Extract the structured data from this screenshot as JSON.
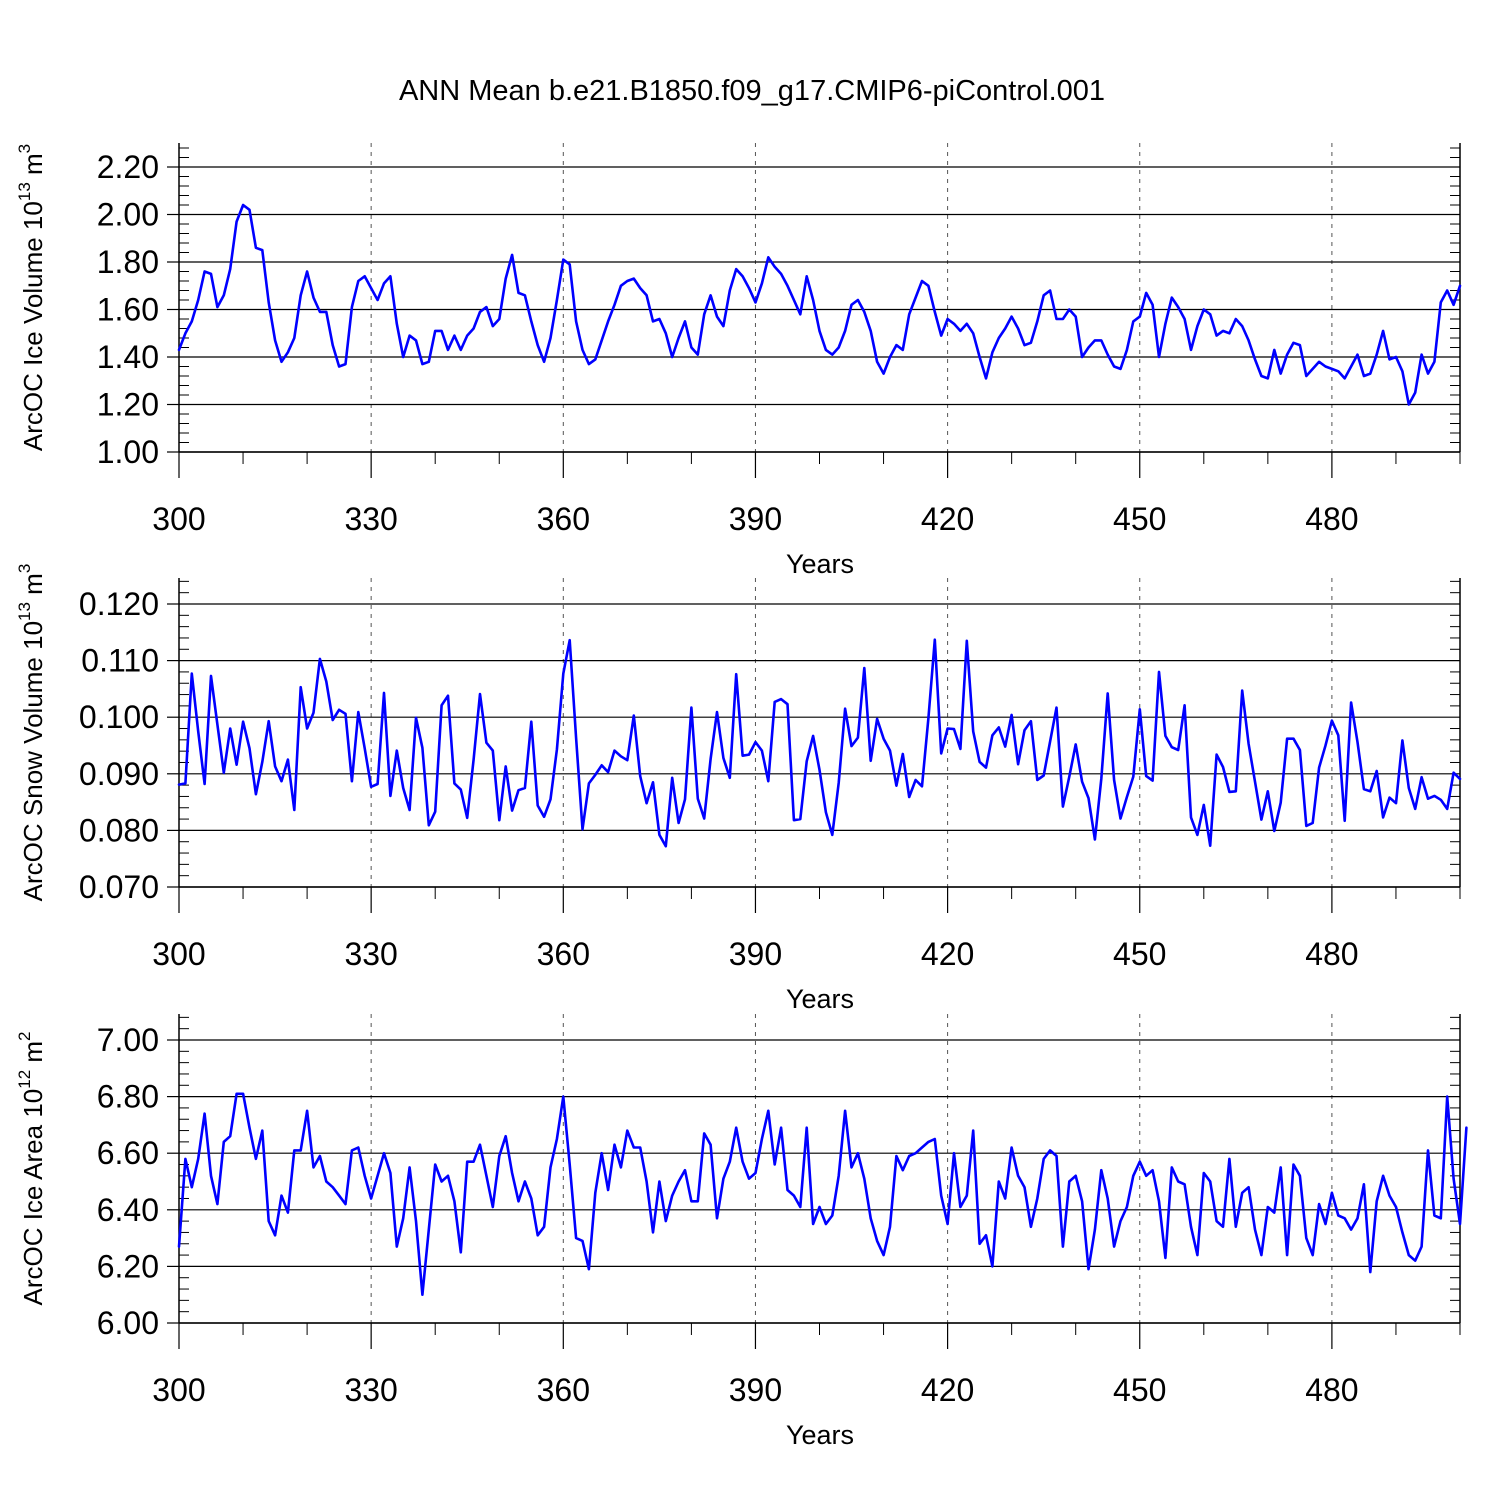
{
  "title": "ANN Mean b.e21.B1850.f09_g17.CMIP6-piControl.001",
  "colors": {
    "series": "#0000ff",
    "axes": "#000000",
    "grid": "#555555"
  },
  "chart_data": [
    {
      "type": "line",
      "title": "ANN Mean b.e21.B1850.f09_g17.CMIP6-piControl.001",
      "xlabel": "Years",
      "ylabel": {
        "text": "ArcOC Ice Volume 10",
        "exponent": "13",
        "unit": " m",
        "unit_exponent": "3"
      },
      "xlim": [
        300,
        500
      ],
      "ylim": [
        1.0,
        2.2
      ],
      "xticks": [
        300,
        330,
        360,
        390,
        420,
        450,
        480
      ],
      "xtick_labels": [
        "300",
        "330",
        "360",
        "390",
        "420",
        "450",
        "480"
      ],
      "yticks": [
        1.0,
        1.2,
        1.4,
        1.6,
        1.8,
        2.0,
        2.2
      ],
      "ytick_labels": [
        "1.00",
        "1.20",
        "1.40",
        "1.60",
        "1.80",
        "2.00",
        "2.20"
      ],
      "grid": "vertical dashed at major x ticks",
      "series": [
        {
          "name": "ArcOC Ice Volume",
          "x_start": 300,
          "x_step": 1,
          "values": [
            1.43,
            1.5,
            1.55,
            1.64,
            1.76,
            1.75,
            1.61,
            1.66,
            1.77,
            1.97,
            2.04,
            2.02,
            1.86,
            1.85,
            1.63,
            1.47,
            1.38,
            1.42,
            1.48,
            1.66,
            1.76,
            1.65,
            1.59,
            1.59,
            1.45,
            1.36,
            1.37,
            1.61,
            1.72,
            1.74,
            1.69,
            1.64,
            1.71,
            1.74,
            1.54,
            1.4,
            1.49,
            1.47,
            1.37,
            1.38,
            1.51,
            1.51,
            1.43,
            1.49,
            1.43,
            1.49,
            1.52,
            1.59,
            1.61,
            1.53,
            1.56,
            1.73,
            1.83,
            1.67,
            1.66,
            1.55,
            1.45,
            1.38,
            1.48,
            1.64,
            1.81,
            1.79,
            1.55,
            1.43,
            1.37,
            1.39,
            1.47,
            1.55,
            1.62,
            1.7,
            1.72,
            1.73,
            1.69,
            1.66,
            1.55,
            1.56,
            1.5,
            1.4,
            1.48,
            1.55,
            1.44,
            1.41,
            1.58,
            1.66,
            1.57,
            1.53,
            1.68,
            1.77,
            1.74,
            1.69,
            1.63,
            1.71,
            1.82,
            1.78,
            1.75,
            1.7,
            1.64,
            1.58,
            1.74,
            1.64,
            1.51,
            1.43,
            1.41,
            1.44,
            1.51,
            1.62,
            1.64,
            1.59,
            1.51,
            1.38,
            1.33,
            1.4,
            1.45,
            1.43,
            1.58,
            1.65,
            1.72,
            1.7,
            1.59,
            1.49,
            1.56,
            1.54,
            1.51,
            1.54,
            1.5,
            1.4,
            1.31,
            1.42,
            1.48,
            1.52,
            1.57,
            1.52,
            1.45,
            1.46,
            1.55,
            1.66,
            1.68,
            1.56,
            1.56,
            1.6,
            1.57,
            1.4,
            1.44,
            1.47,
            1.47,
            1.41,
            1.36,
            1.35,
            1.43,
            1.55,
            1.57,
            1.67,
            1.62,
            1.4,
            1.54,
            1.65,
            1.61,
            1.56,
            1.43,
            1.53,
            1.6,
            1.58,
            1.49,
            1.51,
            1.5,
            1.56,
            1.53,
            1.47,
            1.39,
            1.32,
            1.31,
            1.43,
            1.33,
            1.41,
            1.46,
            1.45,
            1.32,
            1.35,
            1.38,
            1.36,
            1.35,
            1.34,
            1.31,
            1.36,
            1.41,
            1.32,
            1.33,
            1.41,
            1.51,
            1.39,
            1.4,
            1.34,
            1.2,
            1.25,
            1.41,
            1.33,
            1.38,
            1.63,
            1.68,
            1.62,
            1.7
          ]
        }
      ]
    },
    {
      "type": "line",
      "xlabel": "Years",
      "ylabel": {
        "text": "ArcOC Snow Volume 10",
        "exponent": "13",
        "unit": " m",
        "unit_exponent": "3"
      },
      "xlim": [
        300,
        500
      ],
      "ylim": [
        0.07,
        0.12
      ],
      "xticks": [
        300,
        330,
        360,
        390,
        420,
        450,
        480
      ],
      "xtick_labels": [
        "300",
        "330",
        "360",
        "390",
        "420",
        "450",
        "480"
      ],
      "yticks": [
        0.07,
        0.08,
        0.09,
        0.1,
        0.11,
        0.12
      ],
      "ytick_labels": [
        "0.070",
        "0.080",
        "0.090",
        "0.100",
        "0.110",
        "0.120"
      ],
      "grid": "vertical dashed at major x ticks",
      "series": [
        {
          "name": "ArcOC Snow Volume",
          "x_start": 300,
          "x_step": 1,
          "values": [
            0.0881,
            0.0883,
            0.1077,
            0.0975,
            0.0882,
            0.1073,
            0.0987,
            0.0902,
            0.098,
            0.0916,
            0.0992,
            0.0945,
            0.0864,
            0.0921,
            0.0993,
            0.0913,
            0.0887,
            0.0925,
            0.0836,
            0.1053,
            0.098,
            0.1008,
            0.1103,
            0.1063,
            0.0995,
            0.1013,
            0.1006,
            0.0887,
            0.1009,
            0.0945,
            0.0877,
            0.0882,
            0.1043,
            0.0861,
            0.0941,
            0.0875,
            0.0836,
            0.0999,
            0.0946,
            0.0809,
            0.0833,
            0.1021,
            0.1038,
            0.0883,
            0.0872,
            0.0822,
            0.0925,
            0.1041,
            0.0955,
            0.0941,
            0.0818,
            0.0913,
            0.0835,
            0.0871,
            0.0875,
            0.0992,
            0.0844,
            0.0824,
            0.0855,
            0.0943,
            0.1077,
            0.1136,
            0.0963,
            0.0802,
            0.0883,
            0.0898,
            0.0915,
            0.0903,
            0.0941,
            0.0931,
            0.0924,
            0.1003,
            0.0896,
            0.0848,
            0.0885,
            0.0792,
            0.0772,
            0.0893,
            0.0813,
            0.0855,
            0.1017,
            0.0856,
            0.0821,
            0.0926,
            0.1009,
            0.0928,
            0.0893,
            0.1076,
            0.0932,
            0.0934,
            0.0956,
            0.0941,
            0.0887,
            0.1027,
            0.1032,
            0.1023,
            0.0818,
            0.082,
            0.0922,
            0.0967,
            0.0907,
            0.0832,
            0.0792,
            0.0884,
            0.1015,
            0.0949,
            0.0964,
            0.1087,
            0.0923,
            0.0997,
            0.0962,
            0.0941,
            0.0879,
            0.0935,
            0.0859,
            0.0889,
            0.0878,
            0.0998,
            0.1137,
            0.0936,
            0.098,
            0.0979,
            0.0944,
            0.1135,
            0.0975,
            0.0921,
            0.0911,
            0.0968,
            0.0982,
            0.0948,
            0.1004,
            0.0917,
            0.0977,
            0.0993,
            0.0889,
            0.0897,
            0.0957,
            0.1017,
            0.0842,
            0.0895,
            0.0952,
            0.0886,
            0.0857,
            0.0784,
            0.0891,
            0.1042,
            0.0889,
            0.0821,
            0.0859,
            0.0895,
            0.1014,
            0.0896,
            0.0888,
            0.108,
            0.0967,
            0.0947,
            0.0942,
            0.1021,
            0.0823,
            0.0792,
            0.0845,
            0.0773,
            0.0934,
            0.0912,
            0.0868,
            0.0869,
            0.1047,
            0.0953,
            0.0886,
            0.0819,
            0.0869,
            0.0799,
            0.0849,
            0.0962,
            0.0962,
            0.0942,
            0.0808,
            0.0813,
            0.0911,
            0.095,
            0.0994,
            0.0968,
            0.0817,
            0.1026,
            0.0956,
            0.0873,
            0.0869,
            0.0905,
            0.0823,
            0.0858,
            0.0848,
            0.0959,
            0.0875,
            0.0838,
            0.0894,
            0.0856,
            0.0861,
            0.0854,
            0.0838,
            0.0902,
            0.0891
          ]
        }
      ]
    },
    {
      "type": "line",
      "xlabel": "Years",
      "ylabel": {
        "text": "ArcOC Ice Area 10",
        "exponent": "12",
        "unit": " m",
        "unit_exponent": "2"
      },
      "xlim": [
        300,
        500
      ],
      "ylim": [
        6.0,
        7.0
      ],
      "xticks": [
        300,
        330,
        360,
        390,
        420,
        450,
        480
      ],
      "xtick_labels": [
        "300",
        "330",
        "360",
        "390",
        "420",
        "450",
        "480"
      ],
      "yticks": [
        6.0,
        6.2,
        6.4,
        6.6,
        6.8,
        7.0
      ],
      "ytick_labels": [
        "6.00",
        "6.20",
        "6.40",
        "6.60",
        "6.80",
        "7.00"
      ],
      "grid": "vertical dashed at major x ticks",
      "series": [
        {
          "name": "ArcOC Ice Area",
          "x_start": 300,
          "x_step": 1,
          "values": [
            6.27,
            6.58,
            6.48,
            6.58,
            6.74,
            6.52,
            6.42,
            6.64,
            6.66,
            6.81,
            6.81,
            6.69,
            6.58,
            6.68,
            6.36,
            6.31,
            6.45,
            6.39,
            6.61,
            6.61,
            6.75,
            6.55,
            6.59,
            6.5,
            6.48,
            6.45,
            6.42,
            6.61,
            6.62,
            6.52,
            6.44,
            6.52,
            6.6,
            6.53,
            6.27,
            6.37,
            6.55,
            6.36,
            6.1,
            6.33,
            6.56,
            6.5,
            6.52,
            6.43,
            6.25,
            6.57,
            6.57,
            6.63,
            6.52,
            6.41,
            6.59,
            6.66,
            6.53,
            6.43,
            6.5,
            6.44,
            6.31,
            6.34,
            6.55,
            6.65,
            6.8,
            6.56,
            6.3,
            6.29,
            6.19,
            6.46,
            6.6,
            6.47,
            6.63,
            6.55,
            6.68,
            6.62,
            6.62,
            6.5,
            6.32,
            6.5,
            6.36,
            6.45,
            6.5,
            6.54,
            6.43,
            6.43,
            6.67,
            6.63,
            6.37,
            6.51,
            6.57,
            6.69,
            6.57,
            6.51,
            6.53,
            6.65,
            6.75,
            6.56,
            6.69,
            6.47,
            6.45,
            6.41,
            6.69,
            6.35,
            6.41,
            6.35,
            6.38,
            6.52,
            6.75,
            6.55,
            6.6,
            6.51,
            6.37,
            6.29,
            6.24,
            6.34,
            6.59,
            6.54,
            6.59,
            6.6,
            6.62,
            6.64,
            6.65,
            6.45,
            6.35,
            6.6,
            6.41,
            6.45,
            6.68,
            6.28,
            6.31,
            6.2,
            6.5,
            6.44,
            6.62,
            6.52,
            6.48,
            6.34,
            6.44,
            6.58,
            6.61,
            6.59,
            6.27,
            6.5,
            6.52,
            6.43,
            6.19,
            6.33,
            6.54,
            6.44,
            6.27,
            6.36,
            6.41,
            6.52,
            6.57,
            6.52,
            6.54,
            6.43,
            6.23,
            6.55,
            6.5,
            6.49,
            6.34,
            6.24,
            6.53,
            6.5,
            6.36,
            6.34,
            6.58,
            6.34,
            6.46,
            6.48,
            6.33,
            6.24,
            6.41,
            6.39,
            6.55,
            6.24,
            6.56,
            6.52,
            6.3,
            6.24,
            6.42,
            6.35,
            6.46,
            6.38,
            6.37,
            6.33,
            6.37,
            6.49,
            6.18,
            6.43,
            6.52,
            6.45,
            6.41,
            6.32,
            6.24,
            6.22,
            6.27,
            6.61,
            6.38,
            6.37,
            6.8,
            6.51,
            6.35,
            6.69
          ]
        }
      ]
    }
  ]
}
